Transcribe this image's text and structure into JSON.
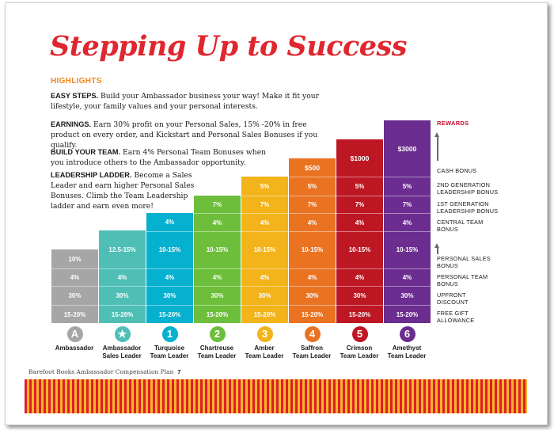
{
  "title": "Stepping Up to Success",
  "highlights_heading": "HIGHLIGHTS",
  "paragraphs": [
    {
      "lead": "EASY STEPS.",
      "text": " Build your Ambassador business your way! Make it fit your lifestyle, your family values and your personal interests."
    },
    {
      "lead": "EARNINGS.",
      "text": " Earn 30% profit on your Personal Sales, 15% -20% in free product on every order, and Kickstart and Personal Sales Bonuses if you qualify."
    },
    {
      "lead": "BUILD YOUR TEAM.",
      "text": " Earn 4% Personal Team Bonuses when you introduce others to the Ambassador opportunity."
    },
    {
      "lead": "LEADERSHIP LADDER.",
      "text": " Become a Sales Leader and earn higher Personal Sales Bonuses. Climb the Team Leadership ladder and earn even more!"
    }
  ],
  "rewards_heading": "REWARDS",
  "row_labels": {
    "cash_bonus": "CASH BONUS",
    "second_gen": "2ND GENERATION LEADERSHIP BONUS",
    "first_gen": "1ST GENERATION LEADERSHIP BONUS",
    "central_team": "CENTRAL TEAM BONUS",
    "personal_sales": "PERSONAL SALES BONUS",
    "personal_team": "PERSONAL TEAM BONUS",
    "upfront": "UPFRONT DISCOUNT",
    "free_gift": "FREE GIFT ALLOWANCE"
  },
  "levels": [
    {
      "badge": "A",
      "label1": "Ambassador",
      "label2": "",
      "color": "#a6a6a6",
      "cash": "",
      "second_gen": "",
      "first_gen": "",
      "central_team": "",
      "personal_sales": "10%",
      "personal_team": "4%",
      "upfront": "30%",
      "free_gift": "15-20%"
    },
    {
      "badge": "★",
      "label1": "Ambassador",
      "label2": "Sales Leader",
      "color": "#4fbfb6",
      "cash": "",
      "second_gen": "",
      "first_gen": "",
      "central_team": "",
      "personal_sales": "12.5-15%",
      "personal_team": "4%",
      "upfront": "30%",
      "free_gift": "15-20%"
    },
    {
      "badge": "1",
      "label1": "Turquoise",
      "label2": "Team Leader",
      "color": "#06b0cf",
      "cash": "",
      "second_gen": "",
      "first_gen": "",
      "central_team": "4%",
      "personal_sales": "10-15%",
      "personal_team": "4%",
      "upfront": "30%",
      "free_gift": "15-20%"
    },
    {
      "badge": "2",
      "label1": "Chartreuse",
      "label2": "Team Leader",
      "color": "#6dbf3b",
      "cash": "",
      "second_gen": "",
      "first_gen": "7%",
      "central_team": "4%",
      "personal_sales": "10-15%",
      "personal_team": "4%",
      "upfront": "30%",
      "free_gift": "15-20%"
    },
    {
      "badge": "3",
      "label1": "Amber",
      "label2": "Team Leader",
      "color": "#f3b31a",
      "cash": "",
      "second_gen": "5%",
      "first_gen": "7%",
      "central_team": "4%",
      "personal_sales": "10-15%",
      "personal_team": "4%",
      "upfront": "30%",
      "free_gift": "15-20%"
    },
    {
      "badge": "4",
      "label1": "Saffron",
      "label2": "Team Leader",
      "color": "#ea7322",
      "cash": "$500",
      "second_gen": "5%",
      "first_gen": "7%",
      "central_team": "4%",
      "personal_sales": "10-15%",
      "personal_team": "4%",
      "upfront": "30%",
      "free_gift": "15-20%"
    },
    {
      "badge": "5",
      "label1": "Crimson",
      "label2": "Team Leader",
      "color": "#bd1724",
      "cash": "$1000",
      "second_gen": "5%",
      "first_gen": "7%",
      "central_team": "4%",
      "personal_sales": "10-15%",
      "personal_team": "4%",
      "upfront": "30%",
      "free_gift": "15-20%"
    },
    {
      "badge": "6",
      "label1": "Amethyst",
      "label2": "Team Leader",
      "color": "#6b2d8f",
      "cash": "$3000",
      "second_gen": "5%",
      "first_gen": "7%",
      "central_team": "4%",
      "personal_sales": "10-15%",
      "personal_team": "4%",
      "upfront": "30%",
      "free_gift": "15-20%"
    }
  ],
  "footer": {
    "text": "Barefoot Books Ambassador Compensation Plan",
    "page": "7"
  }
}
